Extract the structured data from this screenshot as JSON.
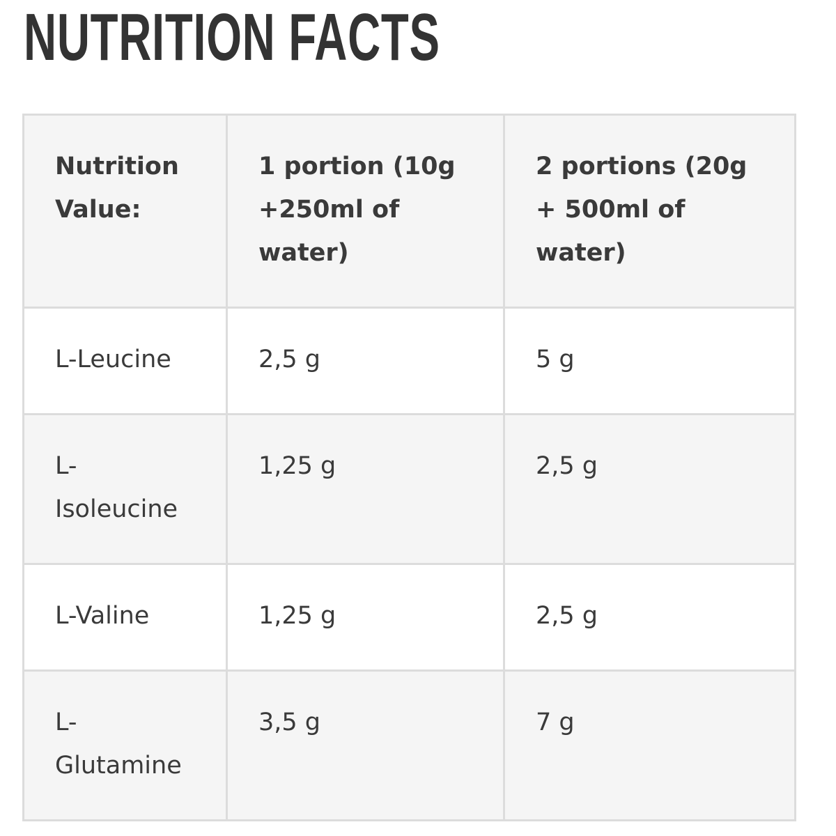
{
  "title": "NUTRITION FACTS",
  "table": {
    "header": [
      "Nutrition Value:",
      "1 portion (10g +250ml of water)",
      "2 portions (20g + 500ml of water)"
    ],
    "rows": [
      [
        "L-Leucine",
        "2,5 g",
        "5 g"
      ],
      [
        "L-Isoleucine",
        "1,25 g",
        "2,5 g"
      ],
      [
        "L-Valine",
        "1,25 g",
        "2,5 g"
      ],
      [
        "L-Glutamine",
        "3,5 g",
        "7 g"
      ]
    ]
  }
}
